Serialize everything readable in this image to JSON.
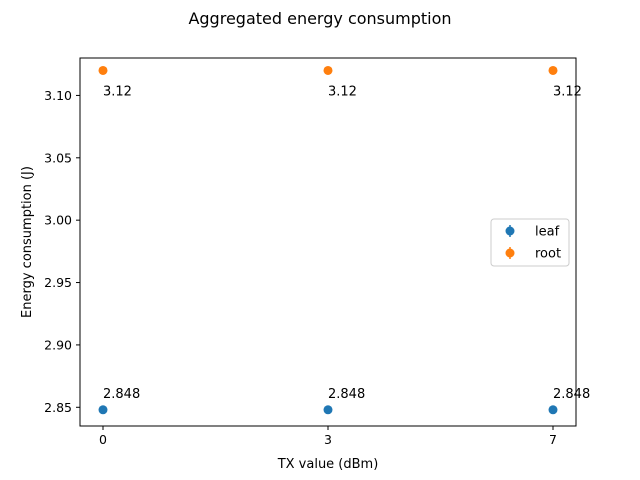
{
  "chart_data": {
    "type": "scatter",
    "title": "Aggregated energy consumption",
    "xlabel": "TX value (dBm)",
    "ylabel": "Energy consumption (J)",
    "x_categories": [
      "0",
      "3",
      "7"
    ],
    "ylim": [
      2.835,
      3.13
    ],
    "y_ticks": [
      2.85,
      2.9,
      2.95,
      3.0,
      3.05,
      3.1
    ],
    "y_tick_labels": [
      "2.85",
      "2.90",
      "2.95",
      "3.00",
      "3.05",
      "3.10"
    ],
    "grid": false,
    "legend_position": "center-right",
    "series": [
      {
        "name": "leaf",
        "color": "#1f77b4",
        "values": [
          2.848,
          2.848,
          2.848
        ],
        "labels": [
          "2.848",
          "2.848",
          "2.848"
        ],
        "label_position": "above"
      },
      {
        "name": "root",
        "color": "#ff7f0e",
        "values": [
          3.12,
          3.12,
          3.12
        ],
        "labels": [
          "3.12",
          "3.12",
          "3.12"
        ],
        "label_position": "below"
      }
    ]
  }
}
